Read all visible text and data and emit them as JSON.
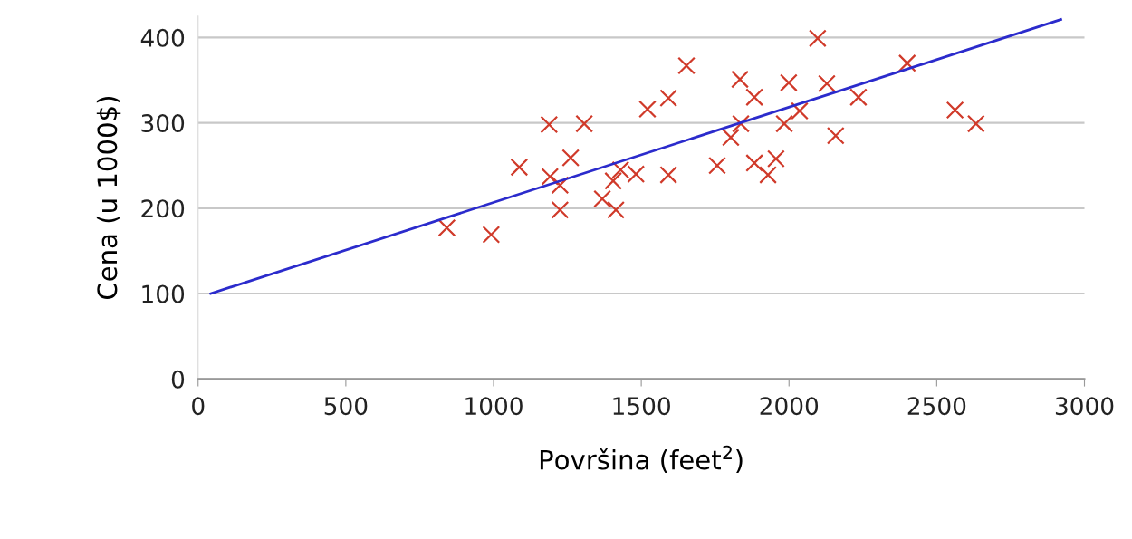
{
  "chart_data": {
    "type": "scatter",
    "xlabel": "Površina (feet$^{2}$)",
    "ylabel": "Cena (u 1000$)",
    "xlim": [
      0,
      3000
    ],
    "xticks": [
      0,
      500,
      1000,
      1500,
      2000,
      2500,
      3000
    ],
    "ylim": [
      0,
      425
    ],
    "yticks": [
      0,
      100,
      200,
      300,
      400
    ],
    "grid": "y",
    "legend": false,
    "series": [
      {
        "marker": "cross",
        "color": "#d03a2a",
        "x": [
          842,
          992,
          1087,
          1188,
          1191,
          1225,
          1225,
          1261,
          1307,
          1368,
          1405,
          1414,
          1430,
          1482,
          1521,
          1592,
          1592,
          1653,
          1757,
          1803,
          1834,
          1837,
          1883,
          1883,
          1929,
          1956,
          1984,
          1999,
          2036,
          2097,
          2128,
          2158,
          2235,
          2400,
          2562,
          2633
        ],
        "values": [
          177,
          169,
          248,
          298,
          237,
          227,
          198,
          259,
          299,
          211,
          232,
          198,
          245,
          240,
          316,
          329,
          239,
          367,
          250,
          283,
          351,
          299,
          330,
          253,
          239,
          258,
          299,
          347,
          314,
          399,
          346,
          285,
          330,
          370,
          315,
          299
        ]
      },
      {
        "type": "line",
        "marker": "none",
        "line_style": "solid",
        "color": "#2b2bcc",
        "x": [
          43,
          2920
        ],
        "values": [
          100,
          421
        ]
      }
    ]
  }
}
